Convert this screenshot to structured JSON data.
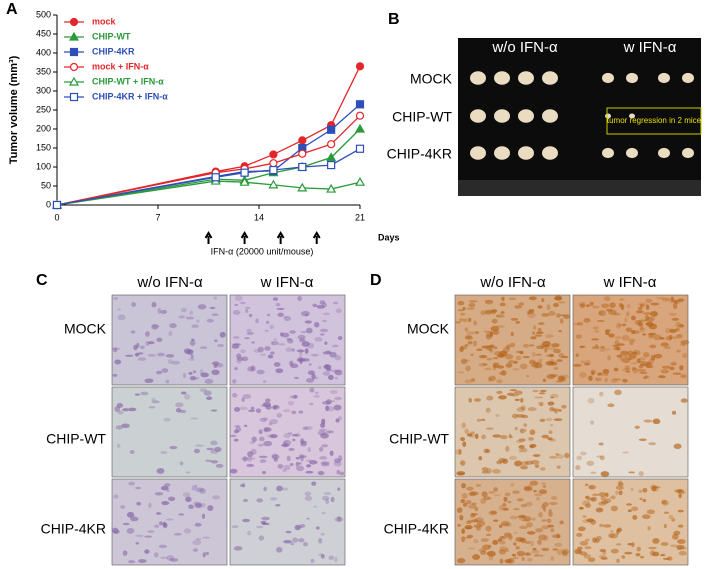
{
  "chart_data": {
    "type": "line",
    "panel_label": "A",
    "ylabel": "Tumor volume (mm³)",
    "xlabel": "Days",
    "annotation": "IFN-α (20000 unit/mouse)",
    "injection_days": [
      10.5,
      13,
      15.5,
      18
    ],
    "x": [
      0,
      11,
      13,
      15,
      17,
      19,
      21
    ],
    "xlim": [
      0,
      21
    ],
    "xticks": [
      0,
      7,
      14,
      21
    ],
    "ylim": [
      0,
      500
    ],
    "yticks": [
      0,
      50,
      100,
      150,
      200,
      250,
      300,
      350,
      400,
      450,
      500
    ],
    "series": [
      {
        "name": "mock",
        "color": "#e3262a",
        "marker": "circle",
        "filled": true,
        "values": [
          0,
          88,
          102,
          133,
          170,
          210,
          365
        ]
      },
      {
        "name": "CHIP-WT",
        "color": "#2a9a3a",
        "marker": "triangle",
        "filled": true,
        "values": [
          0,
          68,
          65,
          85,
          100,
          125,
          200
        ]
      },
      {
        "name": "CHIP-4KR",
        "color": "#2d4fb8",
        "marker": "square",
        "filled": true,
        "values": [
          0,
          75,
          88,
          90,
          150,
          198,
          265
        ]
      },
      {
        "name": "mock + IFN-α",
        "color": "#e3262a",
        "marker": "circle",
        "filled": false,
        "values": [
          0,
          85,
          95,
          110,
          135,
          160,
          235
        ]
      },
      {
        "name": "CHIP-WT + IFN-α",
        "color": "#2a9a3a",
        "marker": "triangle",
        "filled": false,
        "values": [
          0,
          63,
          60,
          53,
          45,
          42,
          60
        ]
      },
      {
        "name": "CHIP-4KR + IFN-α",
        "color": "#2d4fb8",
        "marker": "square",
        "filled": false,
        "values": [
          0,
          73,
          85,
          92,
          100,
          105,
          148
        ]
      }
    ]
  },
  "panels": {
    "B": {
      "label": "B",
      "columns": [
        "w/o IFN-α",
        "w IFN-α"
      ],
      "rows": [
        "MOCK",
        "CHIP-WT",
        "CHIP-4KR"
      ],
      "annotation": "tumor regression in 2 mice"
    },
    "C": {
      "label": "C",
      "columns": [
        "w/o IFN-α",
        "w IFN-α"
      ],
      "rows": [
        "MOCK",
        "CHIP-WT",
        "CHIP-4KR"
      ]
    },
    "D": {
      "label": "D",
      "columns": [
        "w/o IFN-α",
        "w IFN-α"
      ],
      "rows": [
        "MOCK",
        "CHIP-WT",
        "CHIP-4KR"
      ]
    }
  }
}
